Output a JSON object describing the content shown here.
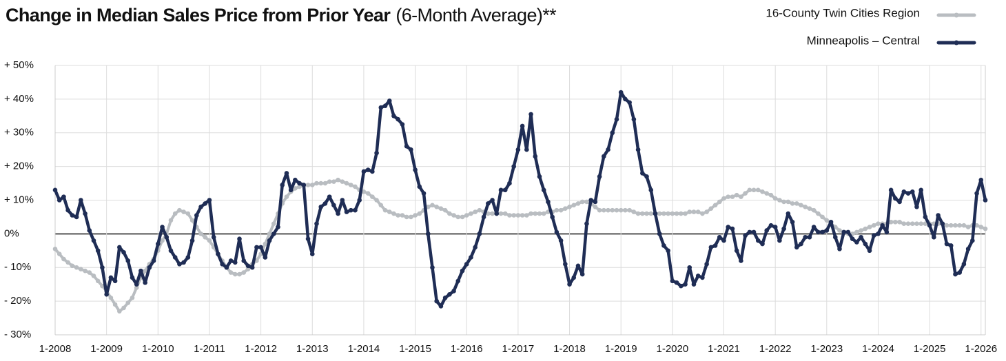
{
  "chart_data": {
    "type": "line",
    "title": "Change in Median Sales Price from Prior Year",
    "subtitle": "(6-Month Average)**",
    "categories": [
      "1-2008",
      null,
      null,
      null,
      null,
      null,
      null,
      null,
      null,
      null,
      null,
      null,
      "1-2009",
      null,
      null,
      null,
      null,
      null,
      null,
      null,
      null,
      null,
      null,
      null,
      "1-2010",
      null,
      null,
      null,
      null,
      null,
      null,
      null,
      null,
      null,
      null,
      null,
      "1-2011",
      null,
      null,
      null,
      null,
      null,
      null,
      null,
      null,
      null,
      null,
      null,
      "1-2012",
      null,
      null,
      null,
      null,
      null,
      null,
      null,
      null,
      null,
      null,
      null,
      "1-2013",
      null,
      null,
      null,
      null,
      null,
      null,
      null,
      null,
      null,
      null,
      null,
      "1-2014",
      null,
      null,
      null,
      null,
      null,
      null,
      null,
      null,
      null,
      null,
      null,
      "1-2015",
      null,
      null,
      null,
      null,
      null,
      null,
      null,
      null,
      null,
      null,
      null,
      "1-2016",
      null,
      null,
      null,
      null,
      null,
      null,
      null,
      null,
      null,
      null,
      null,
      "1-2017",
      null,
      null,
      null,
      null,
      null,
      null,
      null,
      null,
      null,
      null,
      null,
      "1-2018",
      null,
      null,
      null,
      null,
      null,
      null,
      null,
      null,
      null,
      null,
      null,
      "1-2019",
      null,
      null,
      null,
      null,
      null,
      null,
      null,
      null,
      null,
      null,
      null,
      "1-2020",
      null,
      null,
      null,
      null,
      null,
      null,
      null,
      null,
      null,
      null,
      null,
      "1-2021",
      null,
      null,
      null,
      null,
      null,
      null,
      null,
      null,
      null,
      null,
      null,
      "1-2022",
      null,
      null,
      null,
      null,
      null,
      null,
      null,
      null,
      null,
      null,
      null,
      "1-2023",
      null,
      null,
      null,
      null,
      null,
      null,
      null,
      null,
      null,
      null,
      null,
      "1-2024",
      null,
      null,
      null,
      null,
      null,
      null,
      null,
      null,
      null,
      null,
      null,
      "1-2025",
      null,
      null,
      null,
      null,
      null,
      null,
      null,
      null,
      null,
      null,
      null,
      "1-2026",
      null
    ],
    "series": [
      {
        "name": "16-County Twin Cities Region",
        "color": "#b9bdc1",
        "values": [
          -4.5,
          -6,
          -7.5,
          -8.5,
          -9.5,
          -10,
          -10.5,
          -11,
          -11.5,
          -12.5,
          -14,
          -15.5,
          -17,
          -19,
          -21,
          -23,
          -22,
          -20.5,
          -19,
          -16,
          -13,
          -11,
          -9,
          -7.5,
          -5,
          -2,
          0,
          4,
          6,
          7,
          6.5,
          6,
          4,
          2,
          0,
          -1,
          -2,
          -4,
          -6,
          -8,
          -10,
          -11.5,
          -12,
          -12,
          -11.5,
          -10.5,
          -9,
          -8,
          -6,
          -3,
          0,
          3,
          6,
          9,
          11,
          12.5,
          13.5,
          14,
          14.5,
          14.5,
          14.5,
          15,
          15,
          15,
          15.5,
          15.5,
          16,
          15.5,
          15,
          14.5,
          14,
          13,
          12.5,
          12,
          11,
          10,
          8.5,
          7,
          6.5,
          6,
          5.5,
          5.5,
          5,
          5,
          5.5,
          6,
          7,
          8,
          8.5,
          8,
          7.5,
          7,
          6,
          5.5,
          5,
          5,
          5.5,
          6,
          6.5,
          7,
          6.5,
          6,
          6,
          6,
          6,
          6,
          5.5,
          5.5,
          5.5,
          5.5,
          5.5,
          6,
          6,
          6,
          6,
          6.5,
          6.5,
          7,
          7,
          7.5,
          8,
          8.5,
          9,
          9.5,
          9.5,
          9,
          8,
          7,
          7,
          7,
          7,
          7,
          7,
          7,
          7,
          6.5,
          6,
          6,
          6,
          6,
          6,
          6,
          6,
          6,
          6,
          6,
          6,
          6,
          6.5,
          6.5,
          6.5,
          6,
          6.5,
          7.5,
          8.5,
          9.5,
          10.5,
          11,
          11,
          11.5,
          11,
          12,
          13,
          13,
          13,
          12.5,
          12,
          11.5,
          10.5,
          10,
          9.5,
          9.5,
          9,
          9,
          8.5,
          8,
          7.5,
          7,
          6,
          5,
          4,
          3,
          2,
          1,
          0.5,
          0,
          0,
          0.5,
          1,
          1.5,
          2,
          2.5,
          3,
          3,
          3,
          3.5,
          3.5,
          3.5,
          3,
          3,
          3,
          3,
          3,
          3,
          3,
          3,
          3,
          3,
          2.5,
          2.5,
          2.5,
          2.5,
          2.5,
          2,
          2.5,
          2.5,
          2,
          1.5
        ]
      },
      {
        "name": "Minneapolis – Central",
        "color": "#1f2d55",
        "values": [
          13,
          10,
          11,
          7,
          5.5,
          5,
          10,
          6,
          1,
          -2,
          -5,
          -10,
          -18,
          -13,
          -14,
          -4,
          -5.5,
          -8,
          -13,
          -15,
          -11,
          -14.5,
          -10,
          -8,
          -3,
          2,
          -1,
          -5,
          -7,
          -9,
          -8.5,
          -7,
          -2,
          5.5,
          8,
          9,
          10,
          -1,
          -6,
          -9,
          -10,
          -8,
          -8.5,
          -1.5,
          -8,
          -9.5,
          -10,
          -4,
          -4,
          -7,
          -2,
          0,
          2,
          14.5,
          18,
          13,
          16,
          15,
          14.5,
          -1.5,
          -6,
          3,
          8,
          9,
          11,
          8.5,
          6,
          10,
          6.5,
          7,
          7,
          10,
          18.5,
          19,
          18.5,
          24,
          37.5,
          38,
          39.5,
          35,
          34,
          32.5,
          26,
          25,
          19,
          14,
          12,
          0,
          -10,
          -20,
          -21.5,
          -19,
          -18,
          -17,
          -14,
          -11,
          -9,
          -7,
          -4,
          0,
          5,
          9,
          10,
          6,
          13,
          13,
          15,
          20,
          25,
          32,
          25,
          35.5,
          23,
          17,
          13,
          9.5,
          5,
          0.5,
          -2,
          -9,
          -15,
          -13,
          -9.5,
          -12,
          3,
          10,
          9.5,
          17,
          23,
          25,
          30,
          34,
          42,
          40,
          39,
          34,
          25,
          18,
          17,
          13,
          6,
          0,
          -3.5,
          -5,
          -14,
          -14.5,
          -15.5,
          -15,
          -10,
          -15,
          -12.5,
          -13,
          -9,
          -4,
          -3.5,
          -1,
          -2,
          2,
          1.5,
          -5,
          -8,
          -0.5,
          0.5,
          0.5,
          -2,
          -3,
          1,
          2.5,
          2,
          -2,
          1.5,
          6,
          3.5,
          -4,
          -3,
          -1,
          -1,
          2,
          0.5,
          0.5,
          1,
          3.5,
          -1,
          -4.5,
          0.5,
          0.5,
          -1.5,
          -2.5,
          -1,
          -3,
          -5,
          -0.5,
          0,
          2.5,
          0.5,
          13,
          10.5,
          9.5,
          12.5,
          12,
          12.5,
          8,
          13,
          5,
          2.5,
          -1,
          5.5,
          3,
          -3,
          -3.5,
          -12,
          -11.5,
          -9,
          -4.5,
          -2,
          12,
          16,
          10
        ]
      }
    ],
    "ylim": [
      -30,
      50
    ],
    "yticks": [
      {
        "value": -30,
        "label": "- 30%"
      },
      {
        "value": -20,
        "label": "- 20%"
      },
      {
        "value": -10,
        "label": "- 10%"
      },
      {
        "value": 0,
        "label": "0%"
      },
      {
        "value": 10,
        "label": "+ 10%"
      },
      {
        "value": 20,
        "label": "+ 20%"
      },
      {
        "value": 30,
        "label": "+ 30%"
      },
      {
        "value": 40,
        "label": "+ 40%"
      },
      {
        "value": 50,
        "label": "+ 50%"
      }
    ],
    "grid": true
  }
}
